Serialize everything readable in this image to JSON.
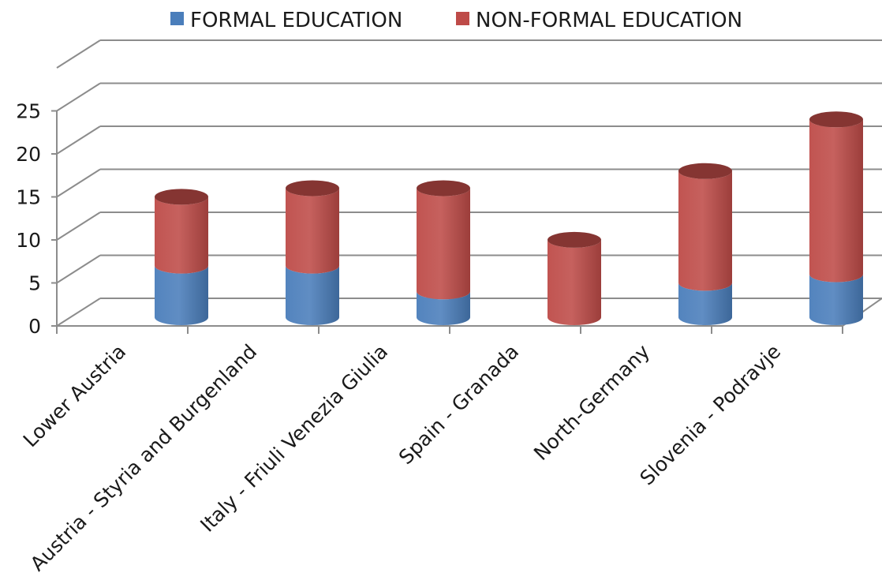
{
  "chart_data": {
    "type": "bar",
    "stacked": true,
    "style": "3d-cylinder",
    "title": "",
    "xlabel": "",
    "ylabel": "",
    "ylim": [
      0,
      25
    ],
    "yticks": [
      0,
      5,
      10,
      15,
      20,
      25
    ],
    "grid": true,
    "legend_position": "top",
    "categories": [
      "Lower Austria",
      "Austria - Styria and Burgenland",
      "Italy - Friuli Venezia Giulia",
      "Spain - Granada",
      "North-Germany",
      "Slovenia - Podravje"
    ],
    "series": [
      {
        "name": "FORMAL EDUCATION",
        "color": "#4a7ebb",
        "values": [
          6,
          6,
          3,
          0,
          4,
          5
        ]
      },
      {
        "name": "NON-FORMAL EDUCATION",
        "color": "#be4b48",
        "values": [
          8,
          9,
          12,
          9,
          13,
          18
        ]
      }
    ]
  }
}
